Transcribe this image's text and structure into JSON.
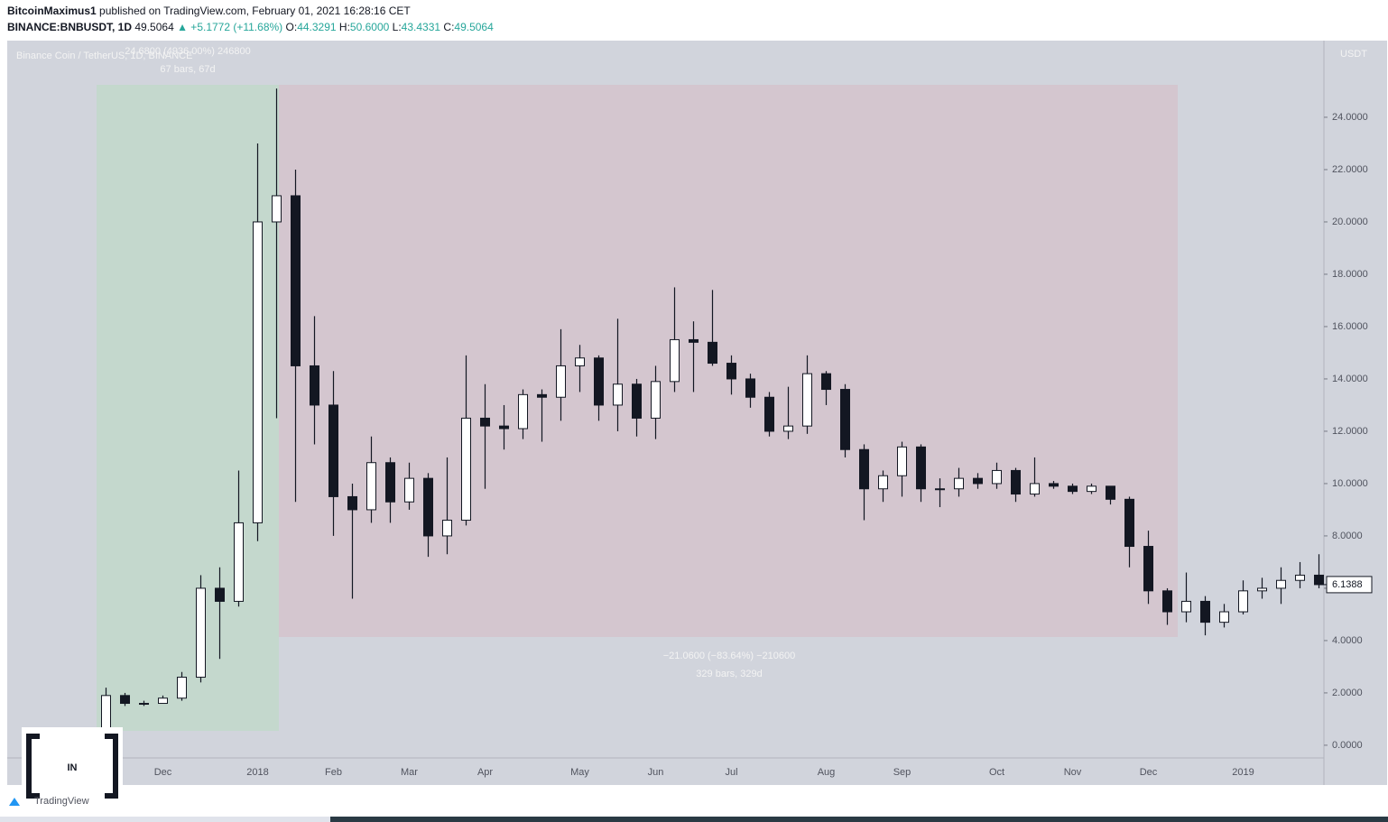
{
  "header": {
    "author": "BitcoinMaximus1",
    "published": "published on TradingView.com, February 01, 2021 16:28:16 CET",
    "symbol": "BINANCE:BNBUSDT, 1D",
    "price": "49.5064",
    "change": "▲ +5.1772 (+11.68%)",
    "ohlc": [
      {
        "label": "O:",
        "value": "44.3291"
      },
      {
        "label": "H:",
        "value": "50.6000"
      },
      {
        "label": "L:",
        "value": "43.4331"
      },
      {
        "label": "C:",
        "value": "49.5064"
      }
    ]
  },
  "logos": {
    "watermark": "IN",
    "tradingview": "TradingView"
  },
  "chart_data": {
    "type": "candlestick",
    "title": "Binance Coin / TetherUS, 1D, BINANCE",
    "y_axis_label": "USDT",
    "annotations": [
      "24.6800 (4936.00%) 246800",
      "67 bars, 67d",
      "−21.0600 (−83.64%) −210600",
      "329 bars, 329d"
    ],
    "categories": [
      null,
      null,
      null,
      "Dec",
      null,
      null,
      null,
      null,
      "2018",
      null,
      null,
      null,
      "Feb",
      null,
      null,
      null,
      "Mar",
      null,
      null,
      null,
      "Apr",
      null,
      null,
      null,
      null,
      "May",
      null,
      null,
      null,
      "Jun",
      null,
      null,
      null,
      "Jul",
      null,
      null,
      null,
      null,
      "Aug",
      null,
      null,
      null,
      "Sep",
      null,
      null,
      null,
      null,
      "Oct",
      null,
      null,
      null,
      "Nov",
      null,
      null,
      null,
      "Dec",
      null,
      null,
      null,
      null,
      "2019",
      null,
      null,
      null,
      null
    ],
    "open": [
      0.6,
      1.9,
      1.6,
      1.6,
      1.8,
      2.6,
      6.0,
      5.5,
      8.5,
      20.0,
      21.0,
      14.5,
      13.0,
      9.5,
      9.0,
      10.8,
      9.3,
      10.2,
      8.0,
      8.6,
      12.5,
      12.2,
      12.1,
      13.4,
      13.3,
      14.5,
      14.8,
      13.0,
      13.8,
      12.5,
      13.9,
      15.5,
      15.4,
      14.6,
      14.0,
      13.3,
      12.0,
      12.2,
      14.2,
      13.6,
      11.3,
      9.8,
      10.3,
      11.4,
      9.8,
      9.8,
      10.2,
      10.0,
      10.5,
      9.6,
      10.0,
      9.9,
      9.7,
      9.9,
      9.4,
      7.6,
      5.9,
      5.1,
      5.5,
      4.7,
      5.1,
      5.9,
      6.0,
      6.3,
      6.5
    ],
    "high": [
      2.2,
      2.0,
      1.7,
      1.9,
      2.8,
      6.5,
      6.8,
      10.5,
      23.0,
      25.1,
      22.0,
      16.4,
      14.3,
      10.0,
      11.8,
      11.0,
      10.8,
      10.4,
      11.0,
      14.9,
      13.8,
      13.0,
      13.6,
      13.6,
      15.9,
      15.3,
      14.9,
      16.3,
      14.0,
      14.5,
      17.5,
      16.2,
      17.4,
      14.9,
      14.2,
      13.5,
      13.7,
      14.9,
      14.3,
      13.8,
      11.5,
      10.5,
      11.6,
      11.5,
      10.2,
      10.6,
      10.4,
      10.8,
      10.6,
      11.0,
      10.1,
      10.0,
      10.0,
      9.9,
      9.5,
      8.2,
      6.0,
      6.6,
      5.7,
      5.4,
      6.3,
      6.4,
      6.8,
      7.0,
      7.3
    ],
    "low": [
      0.5,
      1.5,
      1.5,
      1.6,
      1.7,
      2.4,
      3.3,
      5.3,
      7.8,
      12.5,
      9.3,
      11.5,
      8.0,
      5.6,
      8.5,
      8.5,
      9.0,
      7.2,
      7.3,
      8.4,
      9.8,
      11.3,
      11.7,
      11.6,
      12.4,
      13.5,
      12.4,
      12.0,
      11.8,
      11.7,
      13.5,
      13.5,
      14.5,
      13.4,
      12.9,
      11.8,
      11.7,
      11.9,
      13.0,
      11.0,
      8.6,
      9.3,
      9.5,
      9.3,
      9.1,
      9.5,
      9.8,
      9.8,
      9.3,
      9.5,
      9.8,
      9.6,
      9.6,
      9.2,
      6.8,
      5.4,
      4.6,
      4.7,
      4.2,
      4.5,
      5.0,
      5.6,
      5.4,
      6.0,
      6.0
    ],
    "close": [
      1.9,
      1.6,
      1.6,
      1.8,
      2.6,
      6.0,
      5.5,
      8.5,
      20.0,
      21.0,
      14.5,
      13.0,
      9.5,
      9.0,
      10.8,
      9.3,
      10.2,
      8.0,
      8.6,
      12.5,
      12.2,
      12.1,
      13.4,
      13.3,
      14.5,
      14.8,
      13.0,
      13.8,
      12.5,
      13.9,
      15.5,
      15.4,
      14.6,
      14.0,
      13.3,
      12.0,
      12.2,
      14.2,
      13.6,
      11.3,
      9.8,
      10.3,
      11.4,
      9.8,
      9.8,
      10.2,
      10.0,
      10.5,
      9.6,
      10.0,
      9.9,
      9.7,
      9.9,
      9.4,
      7.6,
      5.9,
      5.1,
      5.5,
      4.7,
      5.1,
      5.9,
      6.0,
      6.3,
      6.5,
      6.1388
    ],
    "up_color": "#ffffff",
    "down_color": "#131722",
    "wick_color": "#131722",
    "ylim": [
      -1.52,
      26.93
    ],
    "yticks": [
      {
        "value": 0,
        "label": "0.0000"
      },
      {
        "value": 2,
        "label": "2.0000"
      },
      {
        "value": 4,
        "label": "4.0000"
      },
      {
        "value": 6,
        "label": "6.0000"
      },
      {
        "value": 8,
        "label": "8.0000"
      },
      {
        "value": 10,
        "label": "10.0000"
      },
      {
        "value": 12,
        "label": "12.0000"
      },
      {
        "value": 14,
        "label": "14.0000"
      },
      {
        "value": 16,
        "label": "16.0000"
      },
      {
        "value": 18,
        "label": "18.0000"
      },
      {
        "value": 20,
        "label": "20.0000"
      },
      {
        "value": 22,
        "label": "22.0000"
      },
      {
        "value": 24,
        "label": "24.0000"
      }
    ],
    "grid": false
  }
}
